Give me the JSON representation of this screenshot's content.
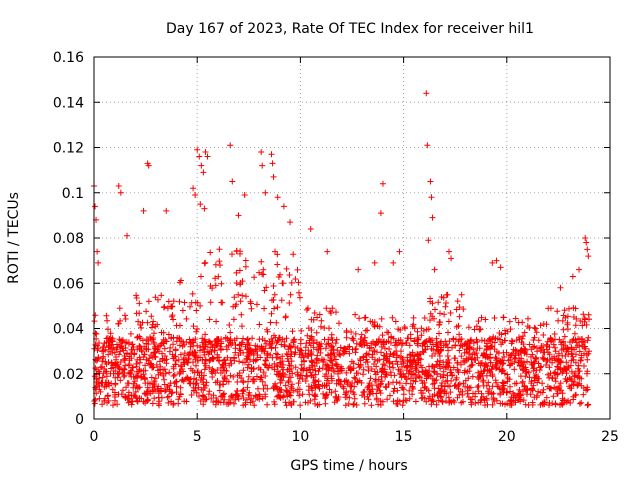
{
  "chart_data": {
    "type": "scatter",
    "title": "Day 167 of 2023, Rate Of TEC Index for receiver hil1",
    "xlabel": "GPS time / hours",
    "ylabel": "ROTI / TECUs",
    "xlim": [
      0,
      25
    ],
    "ylim": [
      0,
      0.16
    ],
    "x_ticks": [
      0,
      5,
      10,
      15,
      20,
      25
    ],
    "x_tick_labels": [
      "0",
      "5",
      "10",
      "15",
      "20",
      "25"
    ],
    "y_ticks": [
      0,
      0.02,
      0.04,
      0.06,
      0.08,
      0.1,
      0.12,
      0.14,
      0.16
    ],
    "y_tick_labels": [
      "0",
      "0.02",
      "0.04",
      "0.06",
      "0.08",
      "0.1",
      "0.12",
      "0.14",
      "0.16"
    ],
    "grid": true,
    "marker": "plus",
    "marker_color": "#ff0000",
    "series": [
      {
        "name": "ROTI",
        "points": [
          [
            0.0,
            0.103
          ],
          [
            0.05,
            0.094
          ],
          [
            0.1,
            0.088
          ],
          [
            0.15,
            0.074
          ],
          [
            0.2,
            0.069
          ],
          [
            1.2,
            0.103
          ],
          [
            1.3,
            0.1
          ],
          [
            1.6,
            0.081
          ],
          [
            2.4,
            0.092
          ],
          [
            2.6,
            0.113
          ],
          [
            2.65,
            0.112
          ],
          [
            3.5,
            0.092
          ],
          [
            4.8,
            0.102
          ],
          [
            4.9,
            0.099
          ],
          [
            5.0,
            0.119
          ],
          [
            5.1,
            0.116
          ],
          [
            5.2,
            0.112
          ],
          [
            5.3,
            0.109
          ],
          [
            5.4,
            0.118
          ],
          [
            5.5,
            0.116
          ],
          [
            5.15,
            0.095
          ],
          [
            5.35,
            0.093
          ],
          [
            6.6,
            0.121
          ],
          [
            6.7,
            0.105
          ],
          [
            7.0,
            0.09
          ],
          [
            7.3,
            0.099
          ],
          [
            8.1,
            0.118
          ],
          [
            8.15,
            0.112
          ],
          [
            8.3,
            0.1
          ],
          [
            8.6,
            0.117
          ],
          [
            8.65,
            0.113
          ],
          [
            8.7,
            0.107
          ],
          [
            8.9,
            0.098
          ],
          [
            9.2,
            0.094
          ],
          [
            9.5,
            0.087
          ],
          [
            10.5,
            0.084
          ],
          [
            11.3,
            0.074
          ],
          [
            12.8,
            0.066
          ],
          [
            13.6,
            0.069
          ],
          [
            13.9,
            0.091
          ],
          [
            14.0,
            0.104
          ],
          [
            14.5,
            0.069
          ],
          [
            14.8,
            0.074
          ],
          [
            16.1,
            0.144
          ],
          [
            16.15,
            0.121
          ],
          [
            16.3,
            0.105
          ],
          [
            16.35,
            0.098
          ],
          [
            16.4,
            0.089
          ],
          [
            16.2,
            0.079
          ],
          [
            16.5,
            0.066
          ],
          [
            17.2,
            0.074
          ],
          [
            17.3,
            0.071
          ],
          [
            19.3,
            0.069
          ],
          [
            19.5,
            0.07
          ],
          [
            19.7,
            0.067
          ],
          [
            22.6,
            0.058
          ],
          [
            23.2,
            0.063
          ],
          [
            23.5,
            0.066
          ],
          [
            23.8,
            0.08
          ],
          [
            23.85,
            0.078
          ],
          [
            23.9,
            0.075
          ],
          [
            23.95,
            0.072
          ]
        ]
      }
    ]
  }
}
